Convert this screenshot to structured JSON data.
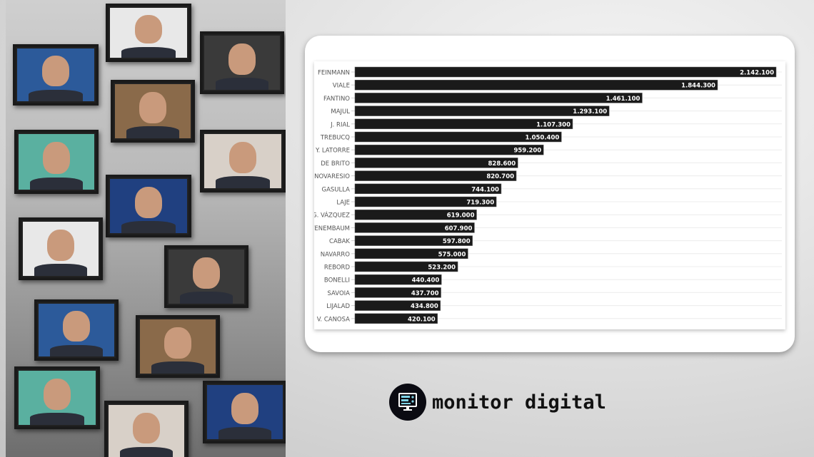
{
  "chart_data": {
    "type": "bar",
    "orientation": "horizontal",
    "categories": [
      "FEINMANN",
      "VIALE",
      "FANTINO",
      "MAJUL",
      "J. RIAL",
      "TREBUCQ",
      "Y. LATORRE",
      "DE BRITO",
      "NOVARESIO",
      "GASULLA",
      "LAJE",
      "G. VÁZQUEZ",
      "TENEMBAUM",
      "CABAK",
      "NAVARRO",
      "REBORD",
      "BONELLI",
      "SAVOIA",
      "LIJALAD",
      "V. CANOSA"
    ],
    "values": [
      2142100,
      1844300,
      1461100,
      1293100,
      1107300,
      1050400,
      959200,
      828600,
      820700,
      744100,
      719300,
      619000,
      607900,
      597800,
      575000,
      523200,
      440400,
      437700,
      434800,
      420100
    ],
    "value_labels": [
      "2.142.100",
      "1.844.300",
      "1.461.100",
      "1.293.100",
      "1.107.300",
      "1.050.400",
      "959.200",
      "828.600",
      "820.700",
      "744.100",
      "719.300",
      "619.000",
      "607.900",
      "597.800",
      "575.000",
      "523.200",
      "440.400",
      "437.700",
      "434.800",
      "420.100"
    ],
    "bar_color": "#1a1a1a",
    "grid": true,
    "legend": "none"
  },
  "logo": {
    "text": "monitor digital",
    "icon": "monitor-icon"
  }
}
